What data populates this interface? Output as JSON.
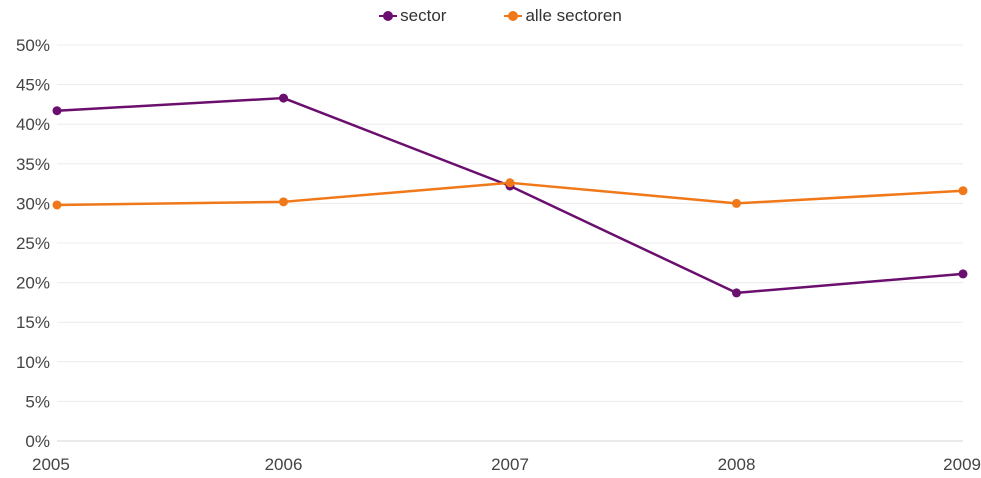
{
  "chart_data": {
    "type": "line",
    "categories": [
      "2005",
      "2006",
      "2007",
      "2008",
      "2009"
    ],
    "series": [
      {
        "name": "sector",
        "color": "#6b0f6e",
        "values": [
          41.7,
          43.3,
          32.2,
          18.7,
          21.1
        ]
      },
      {
        "name": "alle sectoren",
        "color": "#f07818",
        "values": [
          29.8,
          30.2,
          32.6,
          30.0,
          31.6
        ]
      }
    ],
    "ylim": [
      0,
      50
    ],
    "yticks": [
      0,
      5,
      10,
      15,
      20,
      25,
      30,
      35,
      40,
      45,
      50
    ],
    "ytick_labels": [
      "0%",
      "5%",
      "10%",
      "15%",
      "20%",
      "25%",
      "30%",
      "35%",
      "40%",
      "45%",
      "50%"
    ],
    "grid": true,
    "legend": "top-center",
    "title": "",
    "xlabel": "",
    "ylabel": ""
  }
}
